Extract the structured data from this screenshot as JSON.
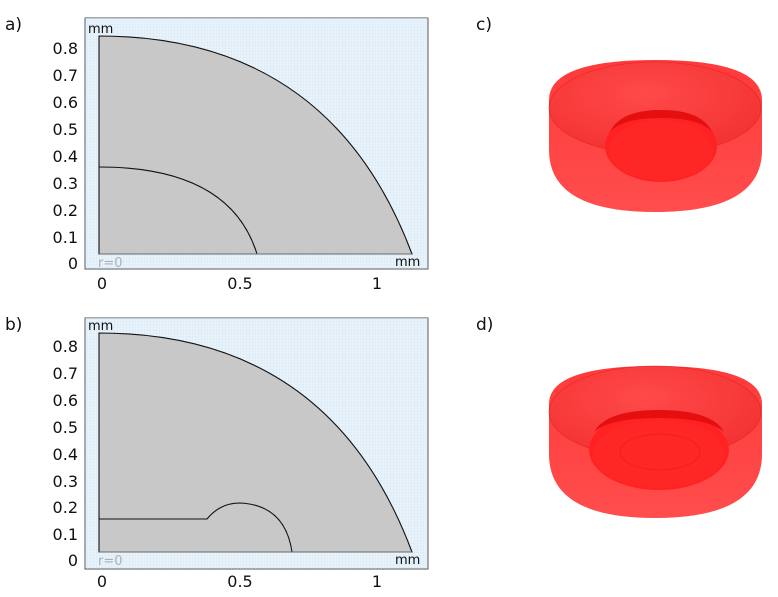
{
  "panels": {
    "a": {
      "label": "a)"
    },
    "b": {
      "label": "b)"
    },
    "c": {
      "label": "c)"
    },
    "d": {
      "label": "d)"
    }
  },
  "axes": {
    "unit": "mm",
    "axis_marker": "r=0",
    "y_ticks": [
      "0",
      "0.1",
      "0.2",
      "0.3",
      "0.4",
      "0.5",
      "0.6",
      "0.7",
      "0.8"
    ],
    "x_ticks": [
      "0",
      "0.5",
      "1"
    ]
  },
  "colors": {
    "background": "#e8f3fb",
    "grid": "#c9dfee",
    "domain_fill": "#c8c8c8",
    "outline": "#111111",
    "render_red": "#ff2a2a"
  }
}
